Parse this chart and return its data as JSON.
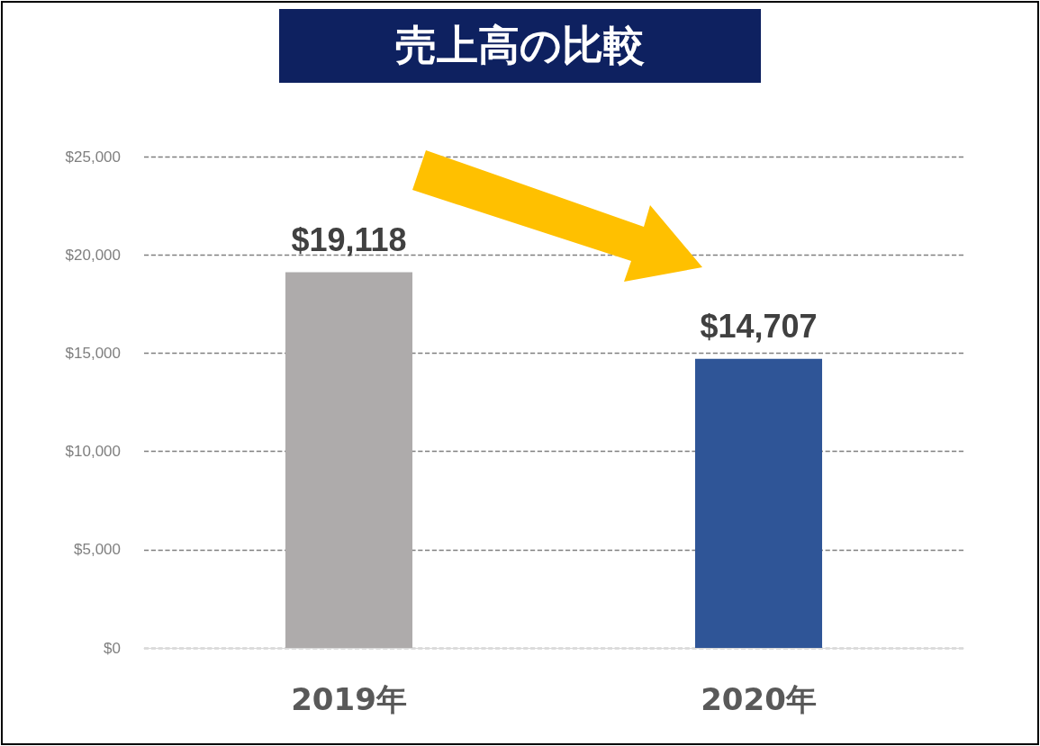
{
  "chart_data": {
    "type": "bar",
    "title": "売上高の比較",
    "categories": [
      "2019年",
      "2020年"
    ],
    "values": [
      19118,
      14707
    ],
    "colors": [
      "#aeabab",
      "#2f5597"
    ],
    "value_labels": [
      "$19,118",
      "$14,707"
    ],
    "ylim": [
      0,
      25000
    ],
    "yticks": [
      {
        "value": 0,
        "label": "$0"
      },
      {
        "value": 5000,
        "label": "$5,000"
      },
      {
        "value": 10000,
        "label": "$10,000"
      },
      {
        "value": 15000,
        "label": "$15,000"
      },
      {
        "value": 20000,
        "label": "$20,000"
      },
      {
        "value": 25000,
        "label": "$25,000"
      }
    ],
    "grid": "y"
  }
}
